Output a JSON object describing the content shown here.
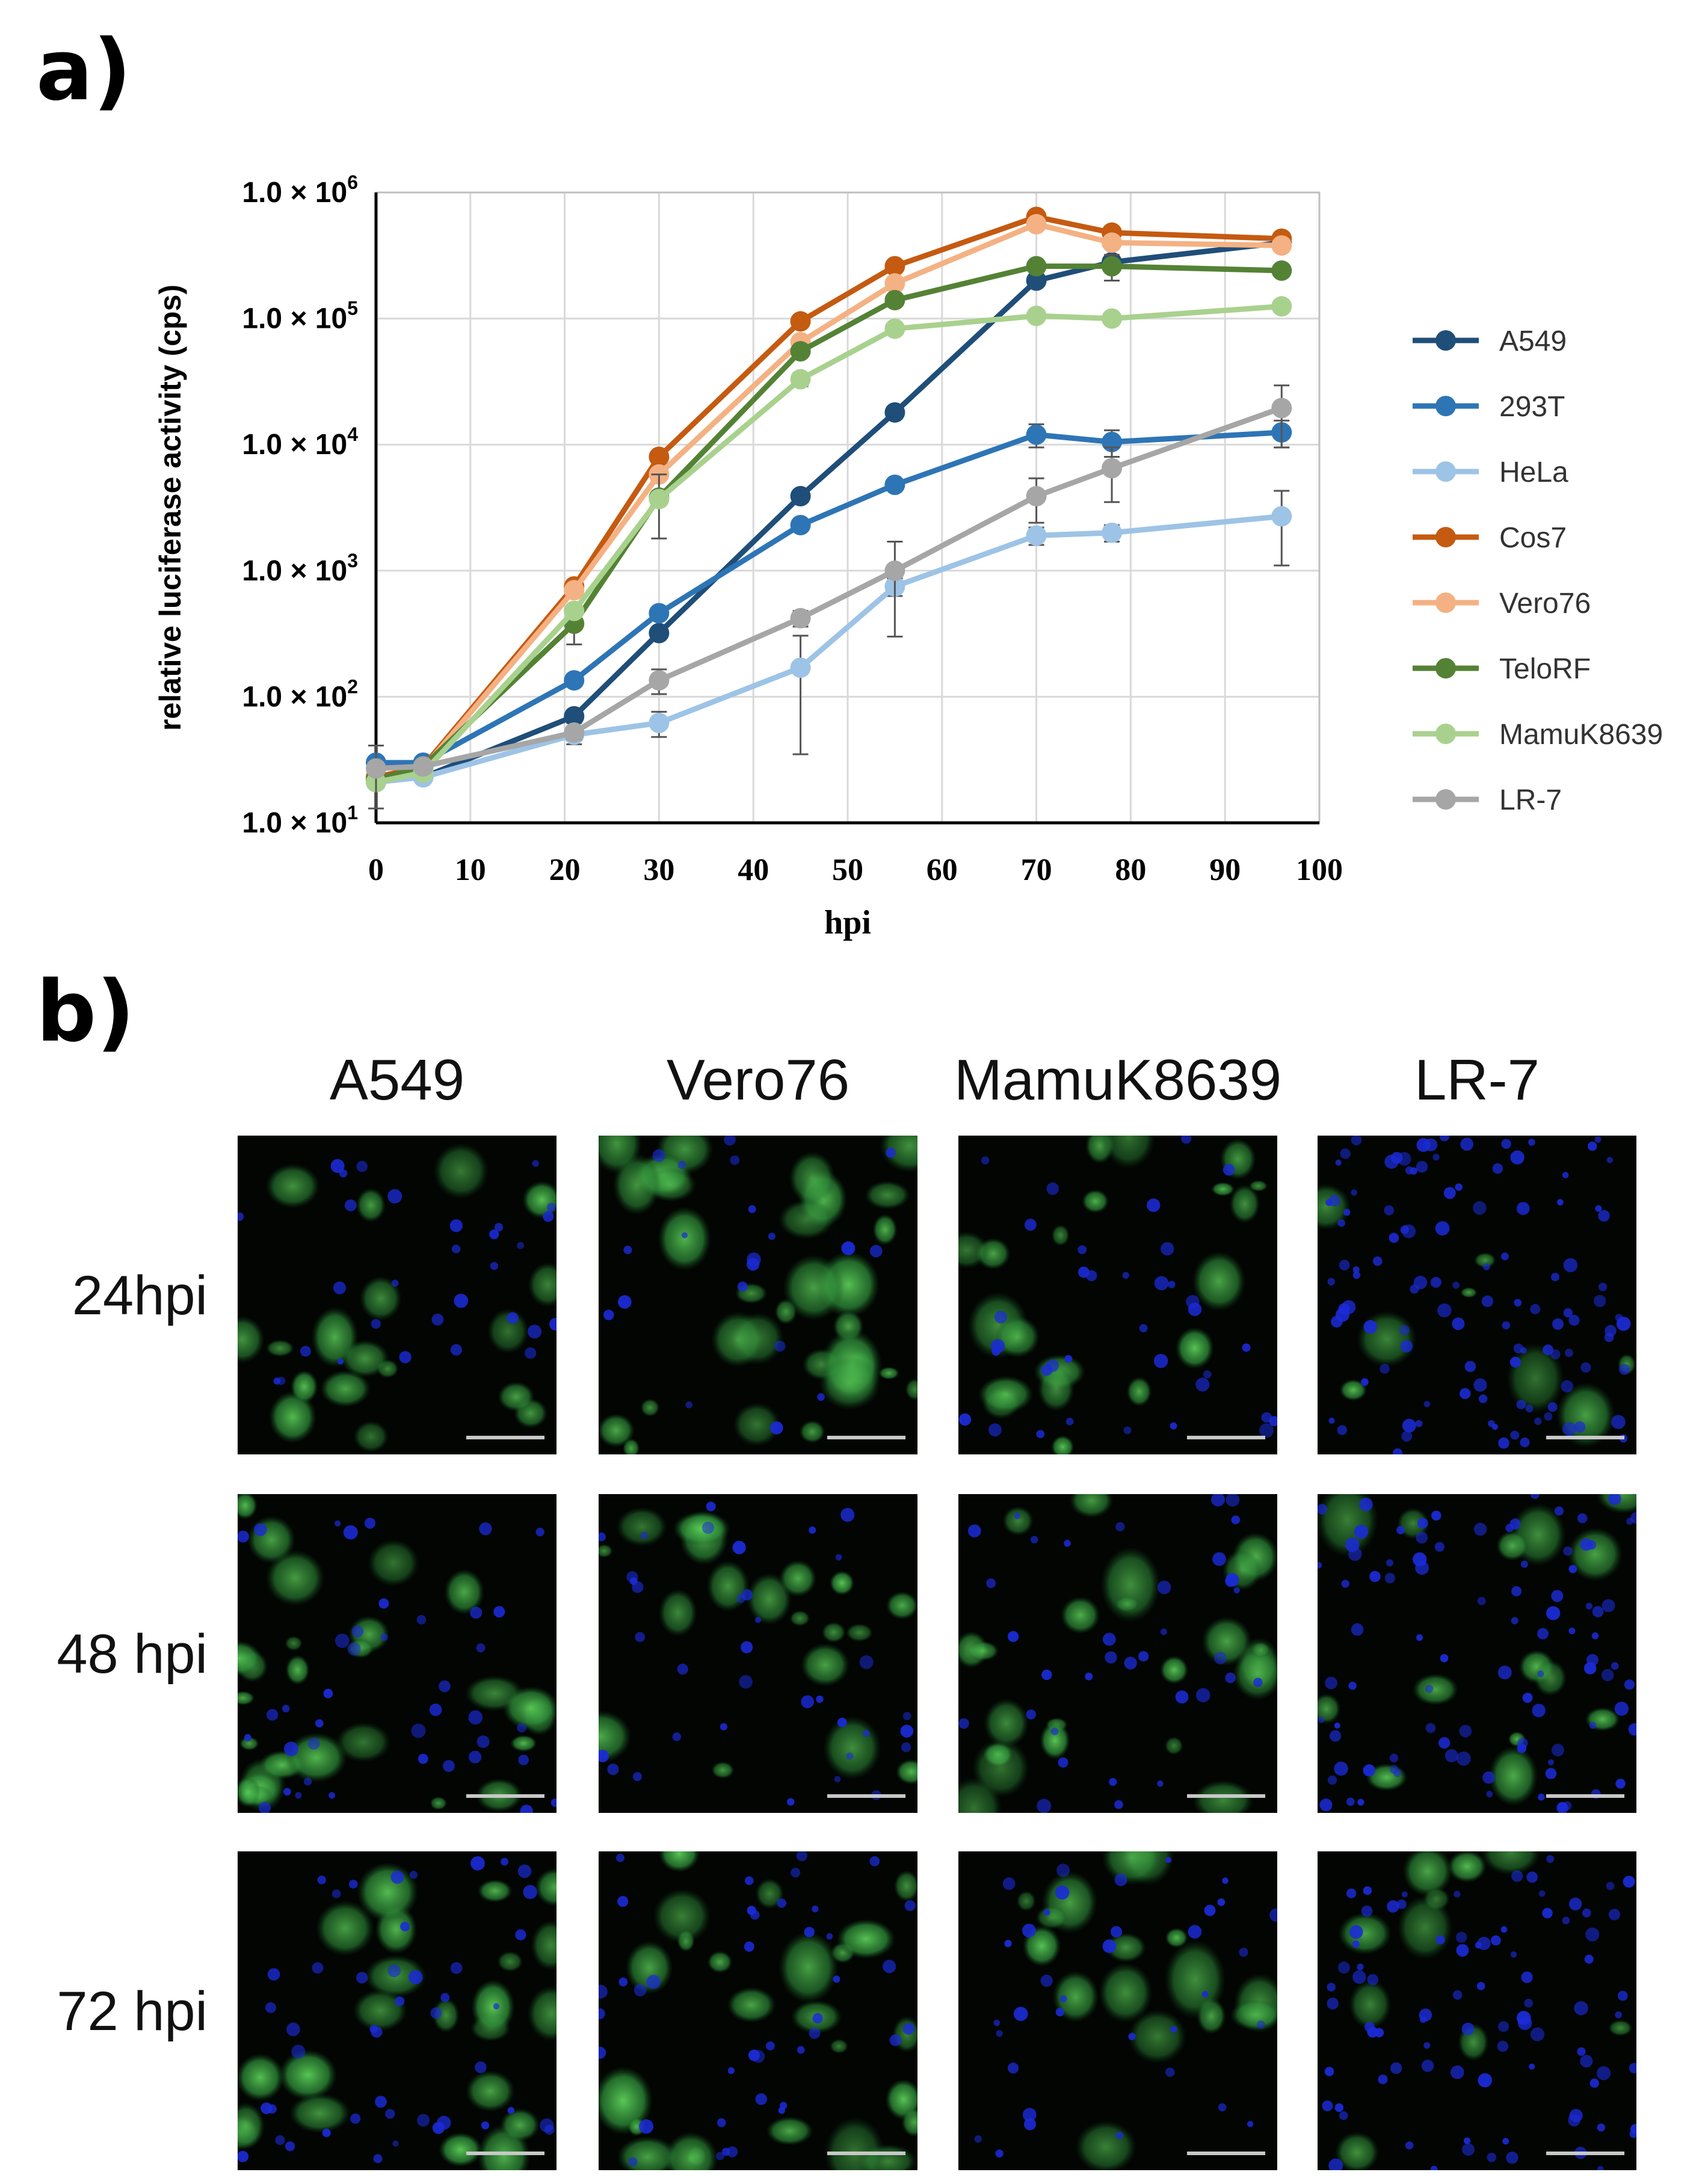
{
  "figure": {
    "panel_a_label": "a)",
    "panel_b_label": "b)"
  },
  "chart_data": {
    "type": "line",
    "xlabel": "hpi",
    "ylabel": "relative luciferase activity (cps)",
    "xlim": [
      0,
      100
    ],
    "x_ticks": [
      0,
      10,
      20,
      30,
      40,
      50,
      60,
      70,
      80,
      90,
      100
    ],
    "y_scale": "log",
    "ylim": [
      10,
      1000000
    ],
    "y_ticks": [
      {
        "value": 10,
        "base": "1.0 × 10",
        "exp": "1"
      },
      {
        "value": 100,
        "base": "1.0 × 10",
        "exp": "2"
      },
      {
        "value": 1000,
        "base": "1.0 × 10",
        "exp": "3"
      },
      {
        "value": 10000,
        "base": "1.0 × 10",
        "exp": "4"
      },
      {
        "value": 100000,
        "base": "1.0 × 10",
        "exp": "5"
      },
      {
        "value": 1000000,
        "base": "1.0 × 10",
        "exp": "6"
      }
    ],
    "grid": true,
    "legend_position": "right",
    "series": [
      {
        "name": "A549",
        "color": "#1f4e79",
        "x": [
          0,
          5,
          21,
          30,
          45,
          55,
          70,
          78,
          96
        ],
        "y": [
          22,
          23,
          70,
          320,
          3900,
          18000,
          200000,
          280000,
          400000
        ],
        "err": [
          2,
          2,
          8,
          30,
          400,
          1500,
          20000,
          30000,
          20000
        ]
      },
      {
        "name": "293T",
        "color": "#2e75b6",
        "x": [
          0,
          5,
          21,
          30,
          45,
          55,
          70,
          78,
          96
        ],
        "y": [
          30,
          30,
          135,
          460,
          2300,
          4800,
          12000,
          10500,
          12500
        ],
        "err": [
          3,
          3,
          12,
          40,
          200,
          400,
          2500,
          2500,
          3000
        ]
      },
      {
        "name": "HeLa",
        "color": "#9dc3e6",
        "x": [
          0,
          5,
          21,
          30,
          45,
          55,
          70,
          78,
          96
        ],
        "y": [
          21,
          23,
          50,
          62,
          170,
          750,
          1900,
          2000,
          2700
        ],
        "err": [
          2,
          2,
          8,
          14,
          135,
          120,
          300,
          300,
          1600
        ]
      },
      {
        "name": "Cos7",
        "color": "#c55a11",
        "x": [
          0,
          5,
          21,
          30,
          45,
          55,
          70,
          78,
          96
        ],
        "y": [
          23,
          28,
          750,
          8000,
          95000,
          260000,
          640000,
          480000,
          430000
        ],
        "err": [
          2,
          3,
          60,
          700,
          8000,
          20000,
          50000,
          40000,
          30000
        ]
      },
      {
        "name": "Vero76",
        "color": "#f4b183",
        "x": [
          0,
          5,
          21,
          30,
          45,
          55,
          70,
          78,
          96
        ],
        "y": [
          22,
          27,
          700,
          5800,
          65000,
          190000,
          560000,
          400000,
          380000
        ],
        "err": [
          2,
          3,
          60,
          500,
          6000,
          15000,
          40000,
          30000,
          30000
        ]
      },
      {
        "name": "TeloRF",
        "color": "#548235",
        "x": [
          0,
          5,
          21,
          30,
          45,
          55,
          70,
          78,
          96
        ],
        "y": [
          22,
          28,
          380,
          3800,
          55000,
          140000,
          260000,
          260000,
          240000
        ],
        "err": [
          2,
          3,
          120,
          2000,
          5000,
          10000,
          20000,
          60000,
          20000
        ]
      },
      {
        "name": "MamuK8639",
        "color": "#a9d18e",
        "x": [
          0,
          5,
          21,
          30,
          45,
          55,
          70,
          78,
          96
        ],
        "y": [
          21,
          25,
          480,
          3700,
          33000,
          83000,
          105000,
          100000,
          125000
        ],
        "err": [
          2,
          2,
          40,
          300,
          4000,
          6000,
          8000,
          8000,
          10000
        ]
      },
      {
        "name": "LR-7",
        "color": "#a6a6a6",
        "x": [
          0,
          5,
          21,
          30,
          45,
          55,
          70,
          78,
          96
        ],
        "y": [
          27,
          28,
          52,
          135,
          420,
          1000,
          3900,
          6500,
          19500
        ],
        "err": [
          14,
          3,
          6,
          30,
          60,
          700,
          1500,
          3000,
          10000
        ]
      }
    ]
  },
  "micrographs": {
    "columns": [
      "A549",
      "Vero76",
      "MamuK8639",
      "LR-7"
    ],
    "rows": [
      "24hpi",
      "48 hpi",
      "72 hpi"
    ]
  }
}
